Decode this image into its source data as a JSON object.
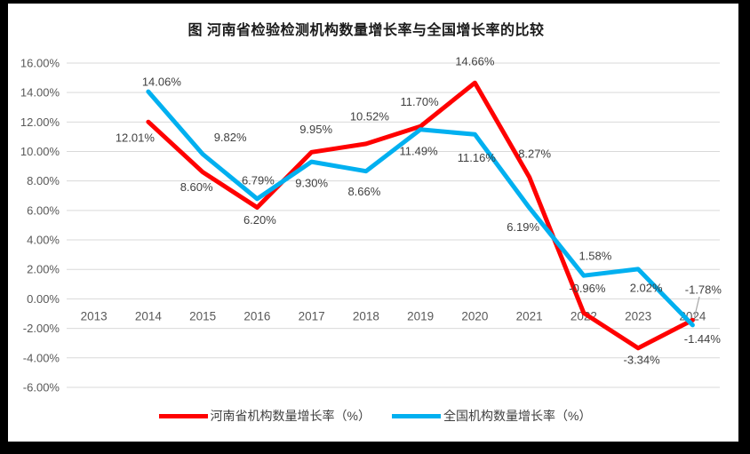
{
  "frame": {
    "background": "#000000",
    "canvas": "#ffffff"
  },
  "chart_data": {
    "type": "line",
    "title": "图  河南省检验检测机构数量增长率与全国增长率的比较",
    "categories": [
      "2013",
      "2014",
      "2015",
      "2016",
      "2017",
      "2018",
      "2019",
      "2020",
      "2021",
      "2022",
      "2023",
      "2024"
    ],
    "series": [
      {
        "name": "河南省机构数量增长率（%）",
        "color": "#FF0000",
        "values": [
          null,
          12.01,
          8.6,
          6.2,
          9.95,
          10.52,
          11.7,
          14.66,
          8.27,
          -0.96,
          -3.34,
          -1.44
        ],
        "labels": [
          "",
          "12.01%",
          "8.60%",
          "6.20%",
          "9.95%",
          "10.52%",
          "11.70%",
          "14.66%",
          "8.27%",
          "-0.96%",
          "-3.34%",
          "-1.44%"
        ]
      },
      {
        "name": "全国机构数量增长率（%）",
        "color": "#00B0F0",
        "values": [
          null,
          14.06,
          9.82,
          6.79,
          9.3,
          8.66,
          11.49,
          11.16,
          6.19,
          1.58,
          2.02,
          -1.78
        ],
        "labels": [
          "",
          "14.06%",
          "9.82%",
          "6.79%",
          "9.30%",
          "8.66%",
          "11.49%",
          "11.16%",
          "6.19%",
          "1.58%",
          "2.02%",
          "-1.78%"
        ]
      }
    ],
    "yticks": [
      "16.00%",
      "14.00%",
      "12.00%",
      "10.00%",
      "8.00%",
      "6.00%",
      "4.00%",
      "2.00%",
      "0.00%",
      "-2.00%",
      "-4.00%",
      "-6.00%"
    ],
    "ylim": [
      -6,
      16
    ],
    "ytick_step": 2,
    "grid": true,
    "legend_position": "bottom",
    "gridline_color": "#D9D9D9",
    "axis_text_color": "#595959",
    "label_text_color": "#3F3F3F",
    "leader_line_color": "#A6A6A6"
  }
}
